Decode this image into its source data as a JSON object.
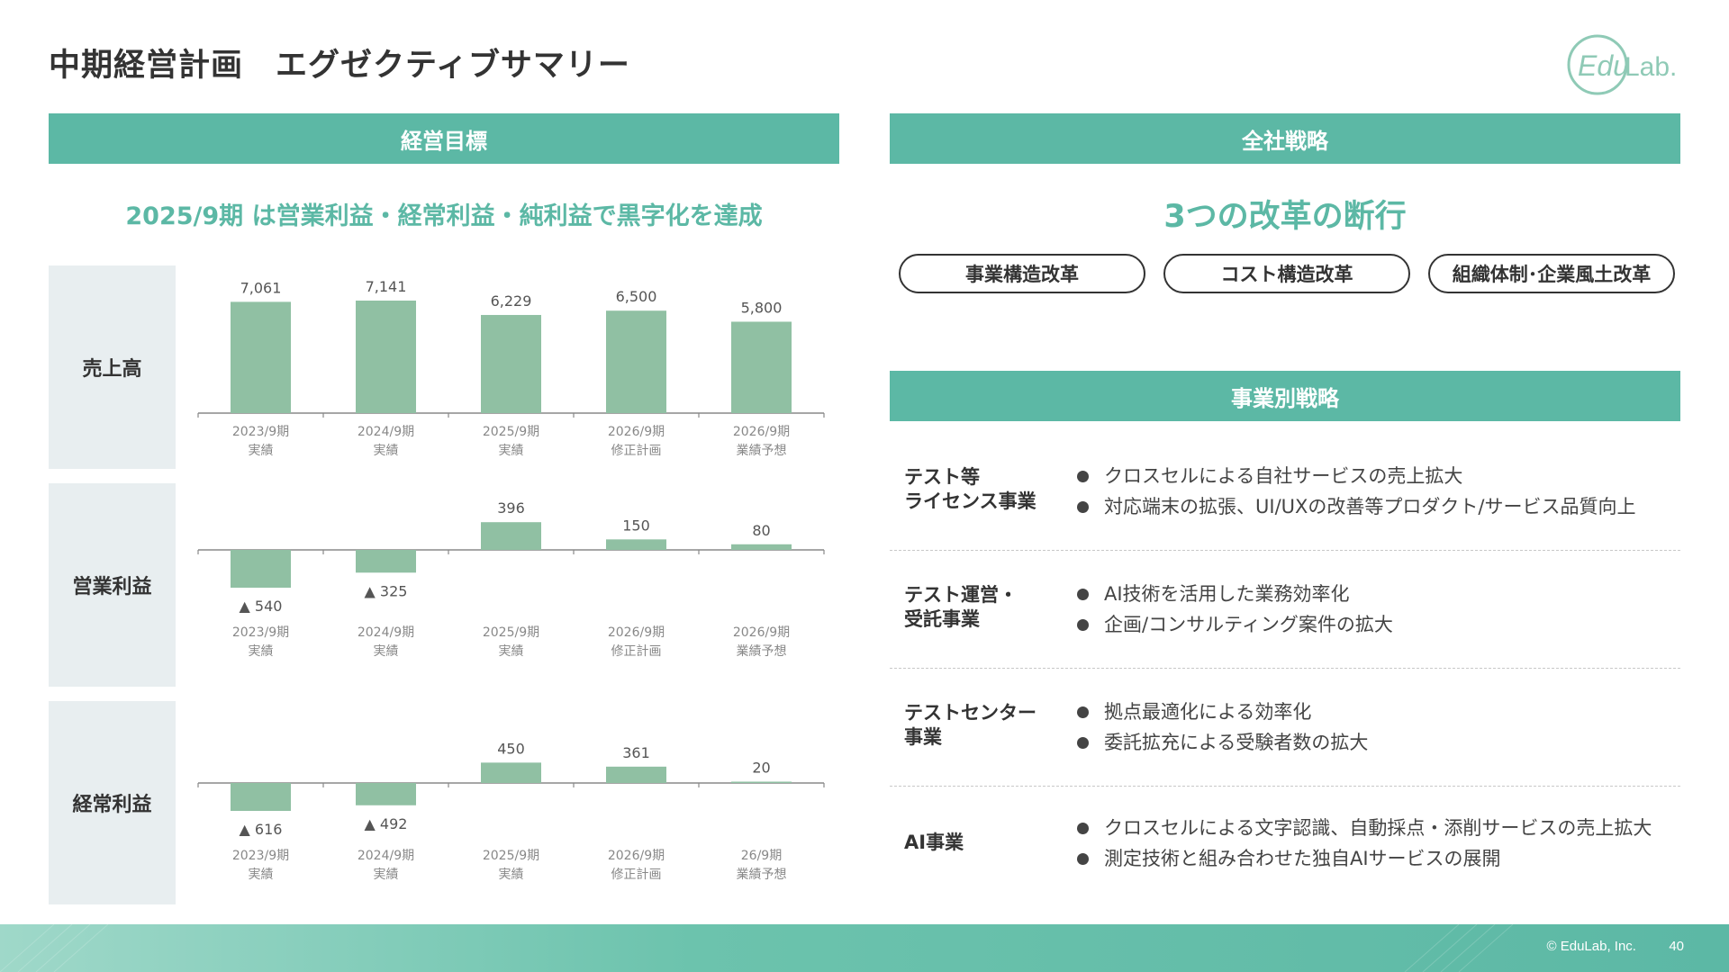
{
  "header": {
    "title": "中期経営計画　エグゼクティブサマリー"
  },
  "logo": {
    "text_main": "Edu",
    "text_sub": "Lab."
  },
  "left": {
    "section_title": "経営目標",
    "subtitle": "2025/9期 は営業利益・経常利益・純利益で黒字化を達成"
  },
  "right": {
    "section_title": "全社戦略",
    "headline": "3つの改革の断行",
    "reforms": [
      "事業構造改革",
      "コスト構造改革",
      "組織体制･企業風土改革"
    ],
    "section2_title": "事業別戦略",
    "businesses": [
      {
        "name_line1": "テスト等",
        "name_line2": "ライセンス事業",
        "bullets": [
          "クロスセルによる自社サービスの売上拡大",
          "対応端末の拡張、UI/UXの改善等プロダクト/サービス品質向上"
        ]
      },
      {
        "name_line1": "テスト運営・",
        "name_line2": "受託事業",
        "bullets": [
          "AI技術を活用した業務効率化",
          "企画/コンサルティング案件の拡大"
        ]
      },
      {
        "name_line1": "テストセンター",
        "name_line2": "事業",
        "bullets": [
          "拠点最適化による効率化",
          "委託拡充による受験者数の拡大"
        ]
      },
      {
        "name_line1": "AI事業",
        "name_line2": "",
        "bullets": [
          "クロスセルによる文字認識、自動採点・添削サービスの売上拡大",
          "測定技術と組み合わせた独自AIサービスの展開"
        ]
      }
    ]
  },
  "colors": {
    "accent": "#5cb8a5",
    "bar": "#90c0a3",
    "label_bg": "#e8eef0"
  },
  "chart_data": [
    {
      "type": "bar",
      "title": "売上高",
      "categories": [
        "2023/9期 実績",
        "2024/9期 実績",
        "2025/9期 実績",
        "2026/9期 修正計画",
        "2026/9期 業績予想"
      ],
      "category_lines": [
        [
          "2023/9期",
          "実績"
        ],
        [
          "2024/9期",
          "実績"
        ],
        [
          "2025/9期",
          "実績"
        ],
        [
          "2026/9期",
          "修正計画"
        ],
        [
          "2026/9期",
          "業績予想"
        ]
      ],
      "values": [
        7061,
        7141,
        6229,
        6500,
        5800
      ],
      "value_labels": [
        "7,061",
        "7,141",
        "6,229",
        "6,500",
        "5,800"
      ],
      "ylim": [
        0,
        8000
      ],
      "grid": false
    },
    {
      "type": "bar",
      "title": "営業利益",
      "categories": [
        "2023/9期 実績",
        "2024/9期 実績",
        "2025/9期 実績",
        "2026/9期 修正計画",
        "2026/9期 業績予想"
      ],
      "category_lines": [
        [
          "2023/9期",
          "実績"
        ],
        [
          "2024/9期",
          "実績"
        ],
        [
          "2025/9期",
          "実績"
        ],
        [
          "2026/9期",
          "修正計画"
        ],
        [
          "2026/9期",
          "業績予想"
        ]
      ],
      "values": [
        -540,
        -325,
        396,
        150,
        80
      ],
      "value_labels": [
        "▲ 540",
        "▲ 325",
        "396",
        "150",
        "80"
      ],
      "ylim": [
        -600,
        450
      ],
      "grid": false
    },
    {
      "type": "bar",
      "title": "経常利益",
      "categories": [
        "2023/9期 実績",
        "2024/9期 実績",
        "2025/9期 実績",
        "2026/9期 修正計画",
        "26/9期 業績予想"
      ],
      "category_lines": [
        [
          "2023/9期",
          "実績"
        ],
        [
          "2024/9期",
          "実績"
        ],
        [
          "2025/9期",
          "実績"
        ],
        [
          "2026/9期",
          "修正計画"
        ],
        [
          "26/9期",
          "業績予想"
        ]
      ],
      "values": [
        -616,
        -492,
        450,
        361,
        20
      ],
      "value_labels": [
        "▲ 616",
        "▲ 492",
        "450",
        "361",
        "20"
      ],
      "ylim": [
        -700,
        550
      ],
      "grid": false
    }
  ],
  "footer": {
    "copyright": "© EduLab, Inc.",
    "page": "40"
  }
}
